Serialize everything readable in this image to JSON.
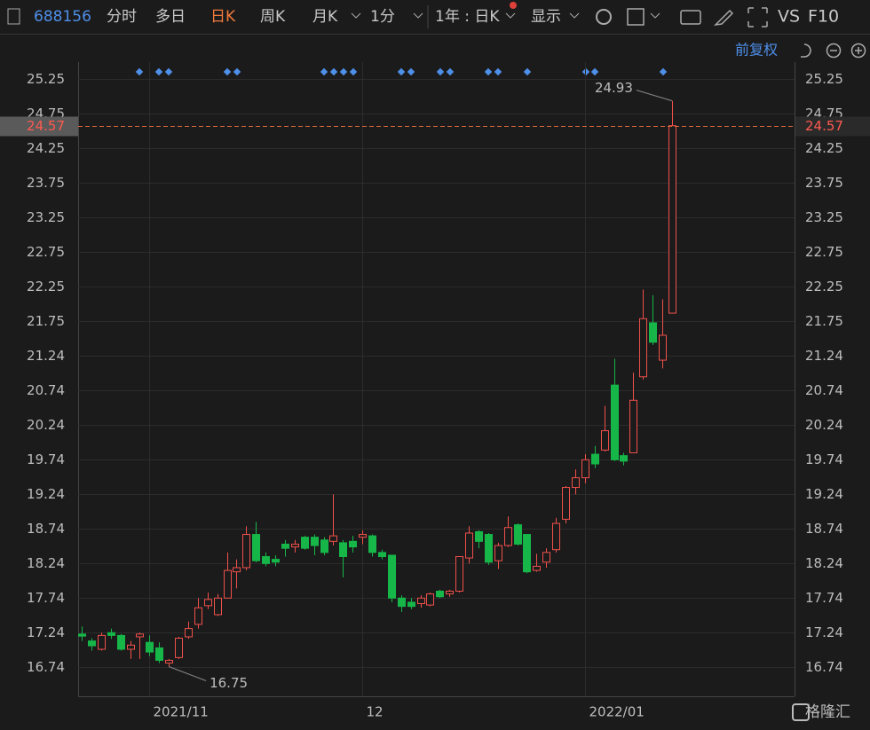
{
  "toolbar": {
    "code": "688156",
    "tabs": [
      "分时",
      "多日",
      "日K",
      "周K",
      "月K",
      "1分"
    ],
    "period": "1年 : 日K",
    "display": "显示",
    "vs": "VS",
    "f10": "F10",
    "adjust": "前复权"
  },
  "watermark": "格隆汇",
  "chart_data": {
    "type": "candlestick",
    "categories": [
      null,
      null,
      null,
      null,
      null,
      null,
      null,
      "2021/11",
      null,
      null,
      null,
      null,
      null,
      null,
      null,
      null,
      null,
      null,
      null,
      null,
      null,
      null,
      null,
      null,
      null,
      null,
      null,
      null,
      null,
      "12",
      null,
      null,
      null,
      null,
      null,
      null,
      null,
      null,
      null,
      null,
      null,
      null,
      null,
      null,
      null,
      null,
      null,
      null,
      null,
      null,
      null,
      null,
      "2022/01",
      null,
      null,
      null,
      null,
      null,
      null,
      null,
      null,
      null
    ],
    "open": [
      17.22,
      17.12,
      17.0,
      17.24,
      17.2,
      17.0,
      17.18,
      17.1,
      17.02,
      16.8,
      16.88,
      17.18,
      17.36,
      17.63,
      17.5,
      17.74,
      18.12,
      18.18,
      18.66,
      18.34,
      18.3,
      18.52,
      18.48,
      18.62,
      18.62,
      18.58,
      18.56,
      18.54,
      18.56,
      18.62,
      18.64,
      18.4,
      18.36,
      17.74,
      17.68,
      17.66,
      17.64,
      17.84,
      17.8,
      17.84,
      18.32,
      18.7,
      18.66,
      18.28,
      18.5,
      18.8,
      18.66,
      18.14,
      18.26,
      18.44,
      18.88,
      19.34,
      19.48,
      19.82,
      19.88,
      20.82,
      19.8,
      19.84,
      20.94,
      21.72,
      21.18,
      21.86
    ],
    "high": [
      17.33,
      17.16,
      17.24,
      17.3,
      17.22,
      17.12,
      17.24,
      17.2,
      17.1,
      16.86,
      17.18,
      17.4,
      17.74,
      17.82,
      17.8,
      18.4,
      18.3,
      18.78,
      18.84,
      18.4,
      18.36,
      18.58,
      18.58,
      18.64,
      18.66,
      18.62,
      19.24,
      18.58,
      18.64,
      18.72,
      18.66,
      18.44,
      18.36,
      17.78,
      17.74,
      17.78,
      17.82,
      17.86,
      17.86,
      18.34,
      18.78,
      18.72,
      18.68,
      18.54,
      18.92,
      18.82,
      18.66,
      18.38,
      18.46,
      18.9,
      19.36,
      19.6,
      19.82,
      19.94,
      20.52,
      21.2,
      19.84,
      21.0,
      22.2,
      22.12,
      22.06,
      24.93
    ],
    "low": [
      17.12,
      16.98,
      16.98,
      17.15,
      16.98,
      16.86,
      16.86,
      16.9,
      16.8,
      16.75,
      16.86,
      17.15,
      17.3,
      17.58,
      17.48,
      17.74,
      17.88,
      18.14,
      18.26,
      18.2,
      18.2,
      18.34,
      18.4,
      18.44,
      18.36,
      18.36,
      18.5,
      18.04,
      18.4,
      18.52,
      18.34,
      18.3,
      17.68,
      17.54,
      17.58,
      17.6,
      17.62,
      17.74,
      17.76,
      17.82,
      18.24,
      18.46,
      18.22,
      18.16,
      18.48,
      18.5,
      18.1,
      18.12,
      18.18,
      18.4,
      18.82,
      19.24,
      19.4,
      19.62,
      19.86,
      19.72,
      19.66,
      19.84,
      20.9,
      21.4,
      21.06,
      21.86
    ],
    "close": [
      17.19,
      17.05,
      17.2,
      17.2,
      17.0,
      17.06,
      17.22,
      16.96,
      16.84,
      16.84,
      17.16,
      17.3,
      17.6,
      17.72,
      17.74,
      18.14,
      18.18,
      18.66,
      18.28,
      18.24,
      18.26,
      18.46,
      18.52,
      18.46,
      18.5,
      18.4,
      18.64,
      18.34,
      18.48,
      18.66,
      18.4,
      18.34,
      17.74,
      17.62,
      17.62,
      17.74,
      17.8,
      17.76,
      17.84,
      18.34,
      18.68,
      18.56,
      18.26,
      18.5,
      18.76,
      18.52,
      18.12,
      18.2,
      18.4,
      18.82,
      19.34,
      19.48,
      19.74,
      19.68,
      20.16,
      19.74,
      19.72,
      20.6,
      21.78,
      21.44,
      21.54,
      24.57
    ],
    "up_color": "#f0504a",
    "down_color": "#16b648",
    "last_line_color": "#e06a3a",
    "ylim": [
      16.32,
      25.49
    ],
    "yticks": [
      25.25,
      24.75,
      24.25,
      23.75,
      23.25,
      22.75,
      22.25,
      21.75,
      21.24,
      20.74,
      20.24,
      19.74,
      19.24,
      18.74,
      18.24,
      17.74,
      17.24,
      16.74
    ],
    "grid": true
  }
}
